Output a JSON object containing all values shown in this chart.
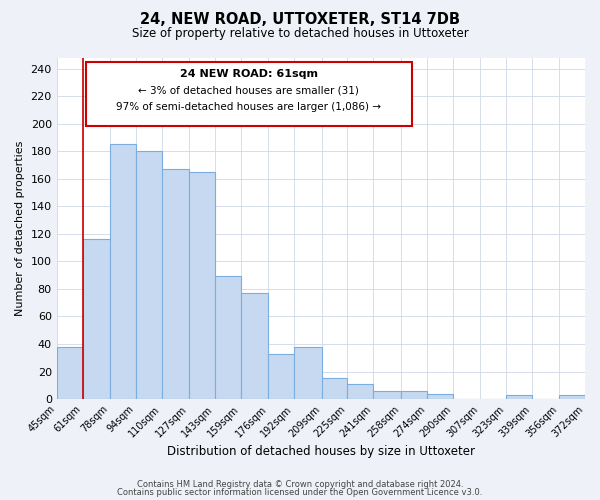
{
  "title": "24, NEW ROAD, UTTOXETER, ST14 7DB",
  "subtitle": "Size of property relative to detached houses in Uttoxeter",
  "xlabel": "Distribution of detached houses by size in Uttoxeter",
  "ylabel": "Number of detached properties",
  "bar_edges": [
    45,
    61,
    78,
    94,
    110,
    127,
    143,
    159,
    176,
    192,
    209,
    225,
    241,
    258,
    274,
    290,
    307,
    323,
    339,
    356,
    372
  ],
  "bar_heights": [
    38,
    116,
    185,
    180,
    167,
    165,
    89,
    77,
    33,
    38,
    15,
    11,
    6,
    6,
    4,
    0,
    0,
    3,
    0,
    3
  ],
  "bar_color": "#c6d9f0",
  "bar_edge_color": "#7aade0",
  "annotation_box_color": "#ffffff",
  "annotation_border_color": "#cc0000",
  "annotation_title": "24 NEW ROAD: 61sqm",
  "annotation_line1": "← 3% of detached houses are smaller (31)",
  "annotation_line2": "97% of semi-detached houses are larger (1,086) →",
  "vline_x": 61,
  "vline_color": "#cc0000",
  "ylim": [
    0,
    248
  ],
  "yticks": [
    0,
    20,
    40,
    60,
    80,
    100,
    120,
    140,
    160,
    180,
    200,
    220,
    240
  ],
  "tick_labels": [
    "45sqm",
    "61sqm",
    "78sqm",
    "94sqm",
    "110sqm",
    "127sqm",
    "143sqm",
    "159sqm",
    "176sqm",
    "192sqm",
    "209sqm",
    "225sqm",
    "241sqm",
    "258sqm",
    "274sqm",
    "290sqm",
    "307sqm",
    "323sqm",
    "339sqm",
    "356sqm",
    "372sqm"
  ],
  "footer_line1": "Contains HM Land Registry data © Crown copyright and database right 2024.",
  "footer_line2": "Contains public sector information licensed under the Open Government Licence v3.0.",
  "bg_color": "#eef2f8",
  "plot_bg_color": "#ffffff",
  "grid_color": "#d0d8e8"
}
